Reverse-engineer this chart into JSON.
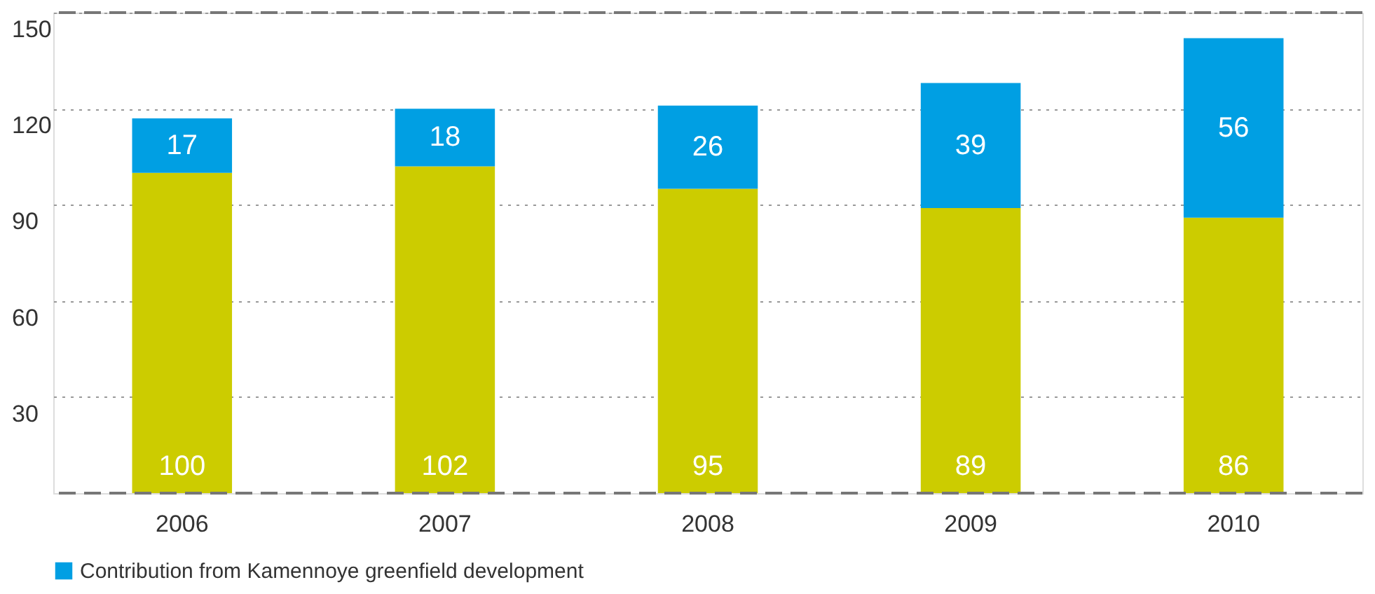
{
  "chart_data": {
    "type": "bar",
    "stacked": true,
    "categories": [
      "2006",
      "2007",
      "2008",
      "2009",
      "2010"
    ],
    "series": [
      {
        "color": "#cccc00",
        "values": [
          100,
          102,
          95,
          89,
          86
        ]
      },
      {
        "name": "Contribution from Kamennoye greenfield development",
        "color": "#009fe3",
        "values": [
          17,
          18,
          26,
          39,
          56
        ]
      }
    ],
    "ylim": [
      0,
      150
    ],
    "yticks": [
      30,
      60,
      90,
      120,
      150
    ],
    "grid": "y",
    "legend": "bottom",
    "data_labels": true
  }
}
